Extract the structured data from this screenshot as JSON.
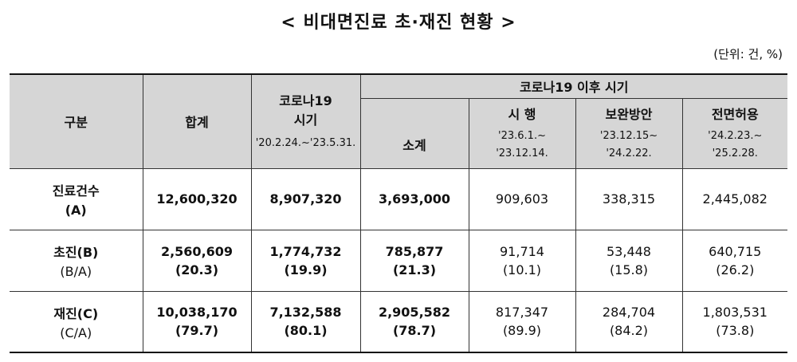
{
  "title": "< 비대면진료 초·재진 현황 >",
  "unit": "(단위: 건, %)",
  "header": {
    "category": "구분",
    "total": "합계",
    "covid_period_name": "코로나19\n시기",
    "covid_period_range": "'20.2.24.~'23.5.31.",
    "post_covid_group": "코로나19 이후 시기",
    "subtotal": "소계",
    "phases": [
      {
        "name": "시 행",
        "range": "'23.6.1.~\n'23.12.14."
      },
      {
        "name": "보완방안",
        "range": "'23.12.15~\n'24.2.22."
      },
      {
        "name": "전면허용",
        "range": "'24.2.23.~\n'25.2.28."
      }
    ]
  },
  "rows": [
    {
      "label": "진료건수",
      "sublabel": "(A)",
      "cells": [
        {
          "top": "12,600,320",
          "bottom": ""
        },
        {
          "top": "8,907,320",
          "bottom": ""
        },
        {
          "top": "3,693,000",
          "bottom": ""
        },
        {
          "top": "909,603",
          "bottom": ""
        },
        {
          "top": "338,315",
          "bottom": ""
        },
        {
          "top": "2,445,082",
          "bottom": ""
        }
      ]
    },
    {
      "label": "초진(B)",
      "sublabel": "(B/A)",
      "cells": [
        {
          "top": "2,560,609",
          "bottom": "(20.3)"
        },
        {
          "top": "1,774,732",
          "bottom": "(19.9)"
        },
        {
          "top": "785,877",
          "bottom": "(21.3)"
        },
        {
          "top": "91,714",
          "bottom": "(10.1)"
        },
        {
          "top": "53,448",
          "bottom": "(15.8)"
        },
        {
          "top": "640,715",
          "bottom": "(26.2)"
        }
      ]
    },
    {
      "label": "재진(C)",
      "sublabel": "(C/A)",
      "cells": [
        {
          "top": "10,038,170",
          "bottom": "(79.7)"
        },
        {
          "top": "7,132,588",
          "bottom": "(80.1)"
        },
        {
          "top": "2,905,582",
          "bottom": "(78.7)"
        },
        {
          "top": "817,347",
          "bottom": "(89.9)"
        },
        {
          "top": "284,704",
          "bottom": "(84.2)"
        },
        {
          "top": "1,803,531",
          "bottom": "(73.8)"
        }
      ]
    }
  ]
}
